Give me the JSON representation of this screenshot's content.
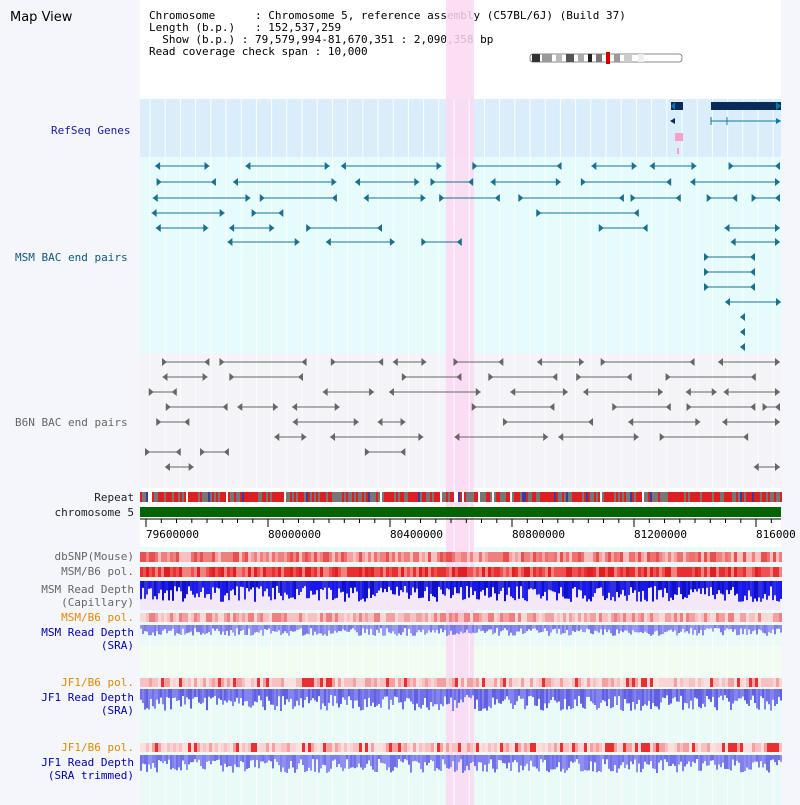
{
  "title": "Map View",
  "info": {
    "chromosome_label": "Chromosome",
    "chromosome_value": "Chromosome 5, reference assembly (C57BL/6J) (Build 37)",
    "length_label": "Length (b.p.)",
    "length_value": "152,537,259",
    "show_label": "Show (b.p.)",
    "show_value": "79,579,994-81,670,351 : 2,090,358 bp",
    "coverage_label": "Read coverage check span",
    "coverage_value": "10,000"
  },
  "tracks": {
    "refseq": "RefSeq Genes",
    "msm_bac": "MSM BAC end pairs",
    "b6n_bac": "B6N BAC end pairs",
    "repeat": "Repeat",
    "chromosome": "chromosome 5",
    "dbsnp": "dbSNP(Mouse)",
    "msm_b6_pol": "MSM/B6 pol.",
    "msm_depth_cap_1": "MSM Read Depth",
    "msm_depth_cap_2": "(Capillary)",
    "msm_b6_pol_sra": "MSM/B6 pol.",
    "msm_depth_sra_1": "MSM Read Depth",
    "msm_depth_sra_2": "(SRA)",
    "jf1_b6_pol": "JF1/B6 pol.",
    "jf1_depth_sra_1": "JF1 Read Depth",
    "jf1_depth_sra_2": "(SRA)",
    "jf1_b6_pol_trim": "JF1/B6 pol.",
    "jf1_depth_trim_1": "JF1 Read Depth",
    "jf1_depth_trim_2": "(SRA trimmed)"
  },
  "axis": {
    "ticks": [
      "79600000",
      "80000000",
      "80400000",
      "80800000",
      "81200000",
      "816000"
    ]
  },
  "colors": {
    "refseq_bg": "#d9eefa",
    "msm_bg": "#e6fbfb",
    "b6n_bg": "#f4f4f8",
    "highlight": "#fbd8f2",
    "chromosome_bar": "#006400",
    "depth_capillary": "#1818e8",
    "depth_sra": "#8888f0",
    "pol_red": "#e83030"
  }
}
